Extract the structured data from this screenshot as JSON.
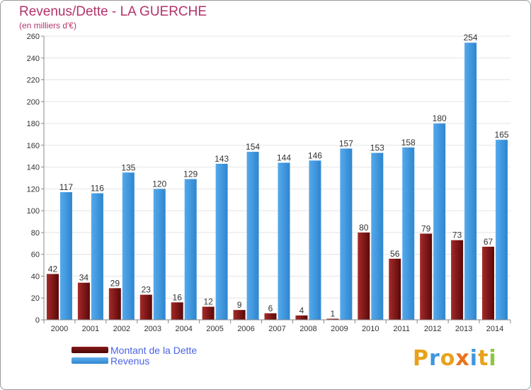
{
  "chart_data": {
    "type": "bar",
    "title": "Revenus/Dette - LA GUERCHE",
    "subtitle": "(en milliers d'€)",
    "categories": [
      "2000",
      "2001",
      "2002",
      "2003",
      "2004",
      "2005",
      "2006",
      "2007",
      "2008",
      "2009",
      "2010",
      "2011",
      "2012",
      "2013",
      "2014"
    ],
    "series": [
      {
        "name": "Montant de la Dette",
        "color": "#7a0f0f",
        "values": [
          42,
          34,
          29,
          23,
          16,
          12,
          9,
          6,
          4,
          1,
          80,
          56,
          79,
          73,
          67
        ]
      },
      {
        "name": "Revenus",
        "color": "#3f96dd",
        "values": [
          117,
          116,
          135,
          120,
          129,
          143,
          154,
          144,
          146,
          157,
          153,
          158,
          180,
          254,
          165
        ]
      }
    ],
    "ylim": [
      0,
      260
    ],
    "yticks": [
      0,
      20,
      40,
      60,
      80,
      100,
      120,
      140,
      160,
      180,
      200,
      220,
      240,
      260
    ],
    "grid": true,
    "legend_position": "bottom-left"
  },
  "logo": {
    "text": "Proxiti",
    "colors": [
      "#e8a21a",
      "#3f96dd",
      "#e8a21a",
      "#e8731a",
      "#3f96dd",
      "#e8a21a",
      "#8cc63f"
    ]
  }
}
